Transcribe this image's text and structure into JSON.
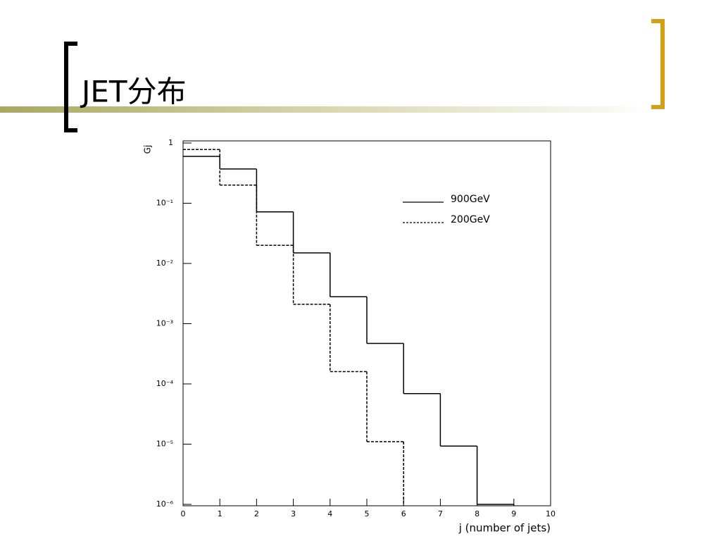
{
  "chart_data": {
    "type": "histogram",
    "title": "JET分布",
    "xlabel": "j (number of jets)",
    "ylabel": "Gj",
    "bins": [
      0,
      1,
      2,
      3,
      4,
      5,
      6,
      7,
      8,
      9,
      10
    ],
    "series": [
      {
        "name": "900GeV",
        "color": "#000000",
        "dash": false,
        "values": [
          0.6,
          0.37,
          0.072,
          0.015,
          0.0028,
          0.00047,
          6.9e-05,
          9.3e-06,
          1e-06,
          null
        ]
      },
      {
        "name": "200GeV",
        "color": "#000000",
        "dash": true,
        "values": [
          0.78,
          0.2,
          0.02,
          0.0021,
          0.00016,
          1.1e-05,
          null,
          null,
          null,
          null
        ]
      }
    ],
    "xlim": [
      0,
      10
    ],
    "xticks": [
      0,
      1,
      2,
      3,
      4,
      5,
      6,
      7,
      8,
      9,
      10
    ],
    "ylim": [
      1e-06,
      1
    ],
    "log_y": true,
    "yticks": [
      {
        "value": 1e-06,
        "label": "10⁻⁶"
      },
      {
        "value": 1e-05,
        "label": "10⁻⁵"
      },
      {
        "value": 0.0001,
        "label": "10⁻⁴"
      },
      {
        "value": 0.001,
        "label": "10⁻³"
      },
      {
        "value": 0.01,
        "label": "10⁻²"
      },
      {
        "value": 0.1,
        "label": "10⁻¹"
      },
      1
    ],
    "legend": "upper right"
  }
}
